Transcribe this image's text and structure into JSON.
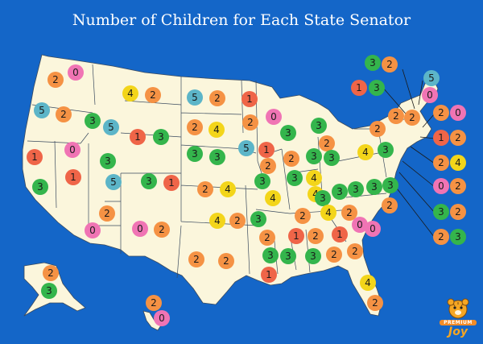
{
  "title": "Number of Children for Each State Senator",
  "brand": {
    "line1": "PREMIUM",
    "line2": "Joy"
  },
  "colors": {
    "ocean": "#1466c8",
    "land": "#fbf6dc",
    "border": "#3a4a5e",
    "0": "#f074b4",
    "1": "#ef6548",
    "2": "#f59244",
    "3": "#34b54c",
    "4": "#f3d51a",
    "5": "#5cb5c8"
  },
  "counts": [
    {
      "name": "wa-1",
      "value": 2
    },
    {
      "name": "wa-2",
      "value": 0
    },
    {
      "name": "or-1",
      "value": 5
    },
    {
      "name": "or-2",
      "value": 2
    },
    {
      "name": "id-1",
      "value": 3
    },
    {
      "name": "id-2",
      "value": 5
    },
    {
      "name": "mt-1",
      "value": 4
    },
    {
      "name": "mt-2",
      "value": 2
    },
    {
      "name": "nd-1",
      "value": 5
    },
    {
      "name": "nd-2",
      "value": 2
    },
    {
      "name": "mn-1",
      "value": 1
    },
    {
      "name": "mn-2",
      "value": 2
    },
    {
      "name": "wy-1",
      "value": 1
    },
    {
      "name": "wy-2",
      "value": 3
    },
    {
      "name": "sd-1",
      "value": 2
    },
    {
      "name": "sd-2",
      "value": 4
    },
    {
      "name": "nv-1",
      "value": 0
    },
    {
      "name": "nv-2",
      "value": 1
    },
    {
      "name": "ca-1",
      "value": 1
    },
    {
      "name": "ca-2",
      "value": 3
    },
    {
      "name": "ut-1",
      "value": 3
    },
    {
      "name": "ut-2",
      "value": 5
    },
    {
      "name": "co-1",
      "value": 3
    },
    {
      "name": "co-2",
      "value": 1
    },
    {
      "name": "ne-1",
      "value": 3
    },
    {
      "name": "ne-2",
      "value": 3
    },
    {
      "name": "ia-1",
      "value": 5
    },
    {
      "name": "ia-2",
      "value": 1
    },
    {
      "name": "wi-1",
      "value": 0
    },
    {
      "name": "wi-2",
      "value": 3
    },
    {
      "name": "mi-1",
      "value": 3
    },
    {
      "name": "mi-2",
      "value": 2
    },
    {
      "name": "ks-1",
      "value": 2
    },
    {
      "name": "ks-2",
      "value": 4
    },
    {
      "name": "mo-1",
      "value": 3
    },
    {
      "name": "mo-2",
      "value": 2
    },
    {
      "name": "il-1",
      "value": 3
    },
    {
      "name": "il-2",
      "value": 2
    },
    {
      "name": "in-1",
      "value": 3
    },
    {
      "name": "in-2",
      "value": 4
    },
    {
      "name": "oh-1",
      "value": 3
    },
    {
      "name": "oh-2",
      "value": 4
    },
    {
      "name": "pa-1",
      "value": 4
    },
    {
      "name": "pa-2",
      "value": 3
    },
    {
      "name": "ny-1",
      "value": 2
    },
    {
      "name": "ny-2",
      "value": 2
    },
    {
      "name": "az-1",
      "value": 2
    },
    {
      "name": "az-2",
      "value": 0
    },
    {
      "name": "nm-1",
      "value": 0
    },
    {
      "name": "nm-2",
      "value": 2
    },
    {
      "name": "ok-1",
      "value": 4
    },
    {
      "name": "ok-2",
      "value": 2
    },
    {
      "name": "ar-1",
      "value": 3
    },
    {
      "name": "ar-2",
      "value": 2
    },
    {
      "name": "ky-1",
      "value": 4
    },
    {
      "name": "ky-2",
      "value": 3
    },
    {
      "name": "wv-1",
      "value": 3
    },
    {
      "name": "wv-2",
      "value": 3
    },
    {
      "name": "va-1",
      "value": 3
    },
    {
      "name": "va-2",
      "value": 3
    },
    {
      "name": "tn-1",
      "value": 2
    },
    {
      "name": "tn-2",
      "value": 4
    },
    {
      "name": "nc-1",
      "value": 2
    },
    {
      "name": "nc-2",
      "value": 2
    },
    {
      "name": "sc-1",
      "value": 0
    },
    {
      "name": "sc-2",
      "value": 0
    },
    {
      "name": "tx-1",
      "value": 2
    },
    {
      "name": "tx-2",
      "value": 2
    },
    {
      "name": "la-1",
      "value": 3
    },
    {
      "name": "la-2",
      "value": 1
    },
    {
      "name": "ms-1",
      "value": 1
    },
    {
      "name": "ms-2",
      "value": 3
    },
    {
      "name": "al-1",
      "value": 2
    },
    {
      "name": "al-2",
      "value": 3
    },
    {
      "name": "ga-1",
      "value": 1
    },
    {
      "name": "ga-2",
      "value": 2
    },
    {
      "name": "ga-3",
      "value": 2
    },
    {
      "name": "fl-1",
      "value": 4
    },
    {
      "name": "fl-2",
      "value": 2
    },
    {
      "name": "ak-1",
      "value": 2
    },
    {
      "name": "ak-2",
      "value": 3
    },
    {
      "name": "hi-1",
      "value": 2
    },
    {
      "name": "hi-2",
      "value": 0
    },
    {
      "name": "ct-1",
      "value": 2
    },
    {
      "name": "nh-1",
      "value": 3
    },
    {
      "name": "nh-2",
      "value": 2
    },
    {
      "name": "vt-1",
      "value": 1
    },
    {
      "name": "vt-2",
      "value": 3
    },
    {
      "name": "me-1",
      "value": 5
    },
    {
      "name": "me-2",
      "value": 0
    },
    {
      "name": "ma-1",
      "value": 2
    },
    {
      "name": "ma-2",
      "value": 0
    },
    {
      "name": "ri-1",
      "value": 1
    },
    {
      "name": "ri-2",
      "value": 2
    },
    {
      "name": "nj-1",
      "value": 2
    },
    {
      "name": "nj-2",
      "value": 4
    },
    {
      "name": "de-1",
      "value": 0
    },
    {
      "name": "de-2",
      "value": 2
    },
    {
      "name": "md-1",
      "value": 3
    },
    {
      "name": "md-2",
      "value": 2
    },
    {
      "name": "dc-1",
      "value": 2
    },
    {
      "name": "dc-2",
      "value": 3
    }
  ]
}
